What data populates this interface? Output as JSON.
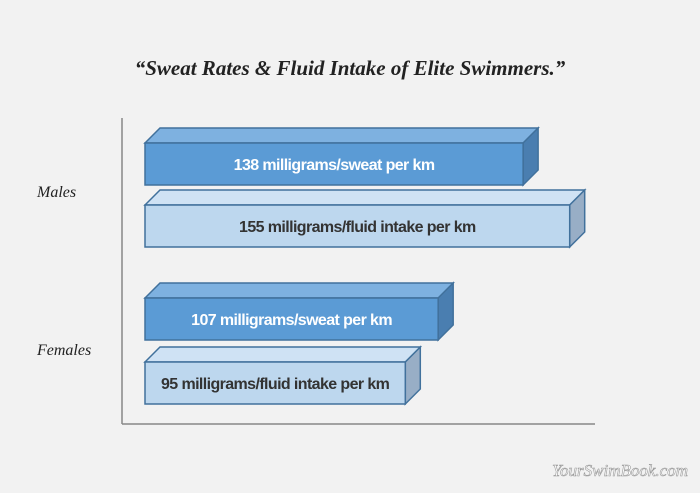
{
  "chart_data": {
    "type": "bar",
    "orientation": "horizontal",
    "style": "3d",
    "title": "“Sweat Rates & Fluid Intake of Elite Swimmers.”",
    "categories": [
      "Males",
      "Females"
    ],
    "bars": [
      {
        "category": "Males",
        "value": 138,
        "label": "138 milligrams/sweat per km",
        "kind": "sweat"
      },
      {
        "category": "Males",
        "value": 155,
        "label": "155 milligrams/fluid intake per km",
        "kind": "fluid"
      },
      {
        "category": "Females",
        "value": 107,
        "label": "107 milligrams/sweat per km",
        "kind": "sweat"
      },
      {
        "category": "Females",
        "value": 95,
        "label": "95 milligrams/fluid intake per km",
        "kind": "fluid"
      }
    ],
    "grid": false,
    "colors": {
      "sweat": "#5b9bd5",
      "fluid": "#bdd7ee"
    }
  },
  "watermark": "YourSwimBook.com"
}
